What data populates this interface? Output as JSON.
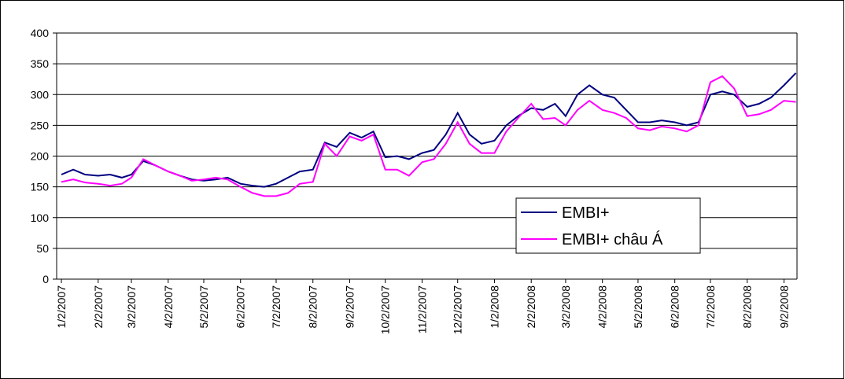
{
  "chart_data": {
    "type": "line",
    "x": [
      "1/2/2007",
      "1/12/2007",
      "1/22/2007",
      "2/2/2007",
      "2/12/2007",
      "2/22/2007",
      "3/2/2007",
      "3/12/2007",
      "3/22/2007",
      "4/2/2007",
      "4/12/2007",
      "4/22/2007",
      "5/2/2007",
      "5/12/2007",
      "5/22/2007",
      "6/2/2007",
      "6/12/2007",
      "6/22/2007",
      "7/2/2007",
      "7/12/2007",
      "7/22/2007",
      "8/2/2007",
      "8/12/2007",
      "8/22/2007",
      "9/2/2007",
      "9/12/2007",
      "9/22/2007",
      "10/2/2007",
      "10/12/2007",
      "10/22/2007",
      "11/2/2007",
      "11/12/2007",
      "11/22/2007",
      "12/2/2007",
      "12/12/2007",
      "12/22/2007",
      "1/2/2008",
      "1/12/2008",
      "1/22/2008",
      "2/2/2008",
      "2/12/2008",
      "2/22/2008",
      "3/2/2008",
      "3/12/2008",
      "3/22/2008",
      "4/2/2008",
      "4/12/2008",
      "4/22/2008",
      "5/2/2008",
      "5/12/2008",
      "5/22/2008",
      "6/2/2008",
      "6/12/2008",
      "6/22/2008",
      "7/2/2008",
      "7/12/2008",
      "7/22/2008",
      "8/2/2008",
      "8/12/2008",
      "8/22/2008",
      "9/2/2008",
      "9/12/2008"
    ],
    "series": [
      {
        "name": "EMBI+",
        "color": "#000080",
        "values": [
          170,
          178,
          170,
          168,
          170,
          165,
          170,
          192,
          185,
          175,
          168,
          162,
          160,
          162,
          165,
          155,
          152,
          150,
          155,
          165,
          175,
          178,
          222,
          215,
          238,
          230,
          240,
          198,
          200,
          195,
          205,
          210,
          235,
          270,
          235,
          220,
          225,
          250,
          265,
          278,
          275,
          285,
          265,
          300,
          315,
          300,
          295,
          275,
          255,
          255,
          258,
          255,
          250,
          255,
          300,
          305,
          300,
          280,
          285,
          295,
          315,
          335
        ]
      },
      {
        "name": "EMBI+ châu Á",
        "color": "#ff00ff",
        "values": [
          158,
          162,
          157,
          155,
          152,
          155,
          165,
          195,
          185,
          175,
          168,
          160,
          162,
          165,
          162,
          150,
          140,
          135,
          135,
          140,
          155,
          158,
          220,
          200,
          232,
          225,
          235,
          178,
          178,
          168,
          190,
          195,
          220,
          255,
          220,
          205,
          205,
          240,
          262,
          285,
          260,
          262,
          250,
          275,
          290,
          275,
          270,
          262,
          245,
          242,
          248,
          245,
          240,
          250,
          320,
          330,
          310,
          265,
          268,
          275,
          290,
          288
        ]
      }
    ],
    "xlim": [
      "12/29/2006",
      "9/13/2008"
    ],
    "xticks": [
      "1/2/2007",
      "2/2/2007",
      "3/2/2007",
      "4/2/2007",
      "5/2/2007",
      "6/2/2007",
      "7/2/2007",
      "8/2/2007",
      "9/2/2007",
      "10/2/2007",
      "11/2/2007",
      "12/2/2007",
      "1/2/2008",
      "2/2/2008",
      "3/2/2008",
      "4/2/2008",
      "5/2/2008",
      "6/2/2008",
      "7/2/2008",
      "8/2/2008",
      "9/2/2008"
    ],
    "ylim": [
      0,
      400
    ],
    "yticks": [
      0,
      50,
      100,
      150,
      200,
      250,
      300,
      350,
      400
    ],
    "grid": true,
    "legend": "lower right"
  }
}
